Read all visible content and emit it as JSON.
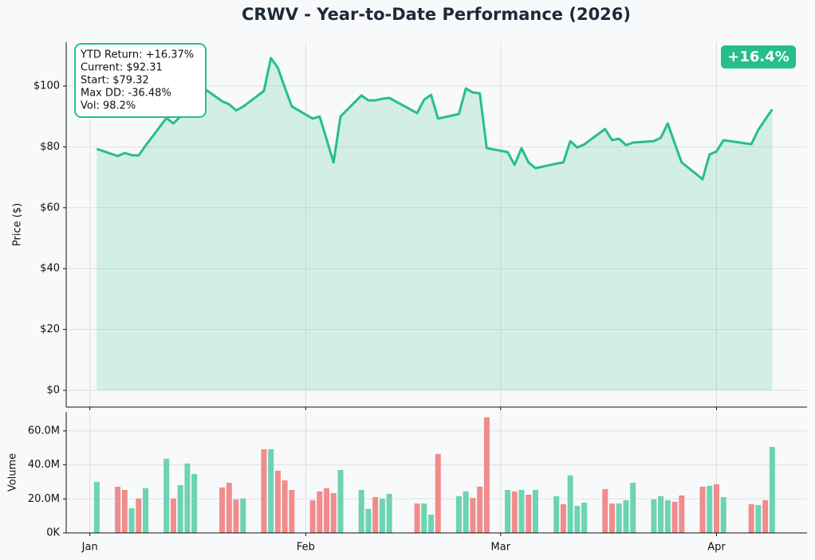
{
  "chart_data": [
    {
      "type": "line",
      "title": "CRWV - Year-to-Date Performance (2026)",
      "ylabel": "Price ($)",
      "color": "#26bf89",
      "area": true,
      "grid": true,
      "annotation": [
        "YTD Return: +16.37%",
        "Current: $92.31",
        "Start: $79.32",
        "Max DD: -36.48%",
        "Vol: 98.2%"
      ],
      "badge": "+16.4%",
      "x": [
        1,
        4,
        5,
        6,
        7,
        8,
        11,
        12,
        13,
        14,
        15,
        19,
        20,
        21,
        22,
        25,
        26,
        27,
        28,
        29,
        32,
        33,
        34,
        35,
        36,
        39,
        40,
        41,
        42,
        43,
        47,
        48,
        49,
        50,
        53,
        54,
        55,
        56,
        57,
        60,
        61,
        62,
        63,
        64,
        67,
        68,
        69,
        70,
        71,
        74,
        75,
        76,
        77,
        78,
        81,
        82,
        83,
        84,
        85,
        88,
        89,
        90,
        91,
        95,
        96,
        97,
        98
      ],
      "series": [
        {
          "name": "Price",
          "color": "#26bf89",
          "values": [
            79.32,
            77.0,
            78.0,
            77.3,
            77.2,
            80.4,
            89.5,
            87.7,
            90.0,
            93.0,
            101.5,
            95.0,
            94.0,
            92.0,
            93.2,
            98.4,
            109.2,
            106.0,
            99.5,
            93.3,
            89.3,
            90.0,
            82.5,
            74.9,
            90.0,
            96.9,
            95.3,
            95.3,
            95.8,
            96.1,
            91.1,
            95.5,
            97.1,
            89.3,
            90.8,
            99.2,
            97.9,
            97.6,
            79.6,
            78.3,
            74.1,
            79.6,
            74.9,
            73.0,
            74.5,
            74.9,
            81.9,
            79.8,
            80.8,
            85.9,
            82.2,
            82.7,
            80.6,
            81.4,
            81.9,
            83.0,
            87.7,
            81.2,
            74.9,
            69.4,
            77.5,
            78.5,
            82.2,
            80.9,
            85.6,
            89.0,
            92.31
          ]
        }
      ],
      "xlim": [
        -3.4,
        103
      ],
      "ylim": [
        -5.5,
        114.4
      ],
      "yticks": [
        {
          "value": 0,
          "label": "$0"
        },
        {
          "value": 20,
          "label": "$20"
        },
        {
          "value": 40,
          "label": "$40"
        },
        {
          "value": 60,
          "label": "$60"
        },
        {
          "value": 80,
          "label": "$80"
        },
        {
          "value": 100,
          "label": "$100"
        }
      ]
    },
    {
      "type": "bar",
      "ylabel": "Volume",
      "grid": true,
      "x": [
        1,
        4,
        5,
        6,
        7,
        8,
        11,
        12,
        13,
        14,
        15,
        19,
        20,
        21,
        22,
        25,
        26,
        27,
        28,
        29,
        32,
        33,
        34,
        35,
        36,
        39,
        40,
        41,
        42,
        43,
        47,
        48,
        49,
        50,
        53,
        54,
        55,
        56,
        57,
        60,
        61,
        62,
        63,
        64,
        67,
        68,
        69,
        70,
        71,
        74,
        75,
        76,
        77,
        78,
        81,
        82,
        83,
        84,
        85,
        88,
        89,
        90,
        91,
        95,
        96,
        97,
        98
      ],
      "values": [
        30,
        27.2,
        25.3,
        14.5,
        20.2,
        26.3,
        43.6,
        20.2,
        28.1,
        40.8,
        34.7,
        26.7,
        29.5,
        19.7,
        20.2,
        49.2,
        49.2,
        36.6,
        30.9,
        25.3,
        19.2,
        24.4,
        26.3,
        23.4,
        37,
        25.3,
        14.1,
        21.1,
        20.2,
        23,
        17.3,
        17.3,
        10.8,
        46.4,
        21.6,
        24.4,
        20.6,
        27.2,
        68,
        25.3,
        24.4,
        25.3,
        22.5,
        25.3,
        21.6,
        16.9,
        33.8,
        15.9,
        17.8,
        25.8,
        17.3,
        17.3,
        19.2,
        29.5,
        19.7,
        21.6,
        19.2,
        18.3,
        22,
        27.2,
        27.7,
        28.6,
        21.1,
        16.9,
        16.4,
        19.2,
        50.6
      ],
      "colors": [
        "#6dd3b0",
        "#f08c8c",
        "#f08c8c",
        "#6dd3b0",
        "#f08c8c",
        "#6dd3b0",
        "#6dd3b0",
        "#f08c8c",
        "#6dd3b0",
        "#6dd3b0",
        "#6dd3b0",
        "#f08c8c",
        "#f08c8c",
        "#f08c8c",
        "#6dd3b0",
        "#f08c8c",
        "#6dd3b0",
        "#f08c8c",
        "#f08c8c",
        "#f08c8c",
        "#f08c8c",
        "#f08c8c",
        "#f08c8c",
        "#f08c8c",
        "#6dd3b0",
        "#6dd3b0",
        "#6dd3b0",
        "#f08c8c",
        "#6dd3b0",
        "#6dd3b0",
        "#f08c8c",
        "#6dd3b0",
        "#6dd3b0",
        "#f08c8c",
        "#6dd3b0",
        "#6dd3b0",
        "#f08c8c",
        "#f08c8c",
        "#f08c8c",
        "#6dd3b0",
        "#f08c8c",
        "#6dd3b0",
        "#f08c8c",
        "#6dd3b0",
        "#6dd3b0",
        "#f08c8c",
        "#6dd3b0",
        "#6dd3b0",
        "#6dd3b0",
        "#f08c8c",
        "#f08c8c",
        "#6dd3b0",
        "#6dd3b0",
        "#6dd3b0",
        "#6dd3b0",
        "#6dd3b0",
        "#6dd3b0",
        "#f08c8c",
        "#f08c8c",
        "#f08c8c",
        "#6dd3b0",
        "#f08c8c",
        "#6dd3b0",
        "#f08c8c",
        "#6dd3b0",
        "#f08c8c",
        "#6dd3b0"
      ],
      "xlim": [
        -3.4,
        103
      ],
      "ylim": [
        0,
        71.2
      ],
      "xticks": [
        {
          "value": 0,
          "label": "Jan"
        },
        {
          "value": 31,
          "label": "Feb"
        },
        {
          "value": 59,
          "label": "Mar"
        },
        {
          "value": 90,
          "label": "Apr"
        }
      ],
      "yticks": [
        {
          "value": 0,
          "label": "0K"
        },
        {
          "value": 20,
          "label": "20.0M"
        },
        {
          "value": 40,
          "label": "40.0M"
        },
        {
          "value": 60,
          "label": "60.0M"
        }
      ]
    }
  ]
}
